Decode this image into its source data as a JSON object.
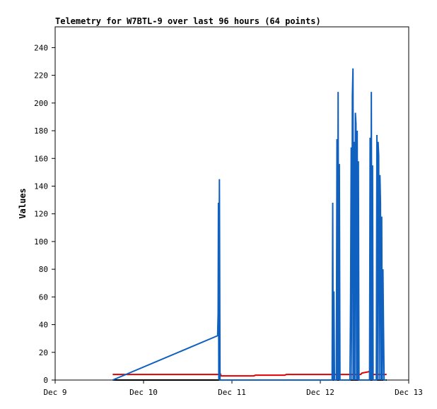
{
  "chart_data": {
    "type": "line",
    "title": "Telemetry for W7BTL-9 over last 96 hours (64 points)",
    "xlabel": "",
    "ylabel": "Values",
    "x_ticks": [
      "Dec 9",
      "Dec 10",
      "Dec 11",
      "Dec 12",
      "Dec 13"
    ],
    "xlim": [
      "Dec 9 00:00",
      "Dec 13 00:00"
    ],
    "ylim": [
      0,
      255
    ],
    "y_ticks": [
      0,
      20,
      40,
      60,
      80,
      100,
      120,
      140,
      160,
      180,
      200,
      220,
      240
    ],
    "grid": false,
    "legend": "none",
    "series": [
      {
        "color": "#000000",
        "points": [
          [
            "Dec 9 15:37",
            0
          ],
          [
            "Dec 12 18:00",
            0
          ]
        ]
      },
      {
        "color": "#e00000",
        "points": [
          [
            "Dec 9 15:37",
            4
          ],
          [
            "Dec 10 20:26",
            4
          ],
          [
            "Dec 10 20:46",
            5
          ],
          [
            "Dec 10 21:05",
            3
          ],
          [
            "Dec 11 06:00",
            3
          ],
          [
            "Dec 11 06:20",
            3.5
          ],
          [
            "Dec 11 14:24",
            3.5
          ],
          [
            "Dec 11 14:44",
            4
          ],
          [
            "Dec 12 10:57",
            4
          ],
          [
            "Dec 12 11:17",
            5
          ],
          [
            "Dec 12 13:11",
            6
          ],
          [
            "Dec 12 13:31",
            7
          ],
          [
            "Dec 12 14:05",
            6
          ],
          [
            "Dec 12 14:24",
            4
          ],
          [
            "Dec 12 18:00",
            4
          ]
        ]
      },
      {
        "color": "#1060c0",
        "points": [
          [
            "Dec 9 15:37",
            0
          ],
          [
            "Dec 10 20:07",
            32
          ],
          [
            "Dec 10 20:15",
            48
          ],
          [
            "Dec 10 20:20",
            128
          ],
          [
            "Dec 10 20:26",
            0
          ],
          [
            "Dec 10 20:36",
            145
          ],
          [
            "Dec 10 20:46",
            0
          ],
          [
            "Dec 12 03:12",
            0
          ],
          [
            "Dec 12 03:22",
            128
          ],
          [
            "Dec 12 03:31",
            0
          ],
          [
            "Dec 12 03:41",
            64
          ],
          [
            "Dec 12 03:51",
            0
          ],
          [
            "Dec 12 04:21",
            0
          ],
          [
            "Dec 12 04:31",
            174
          ],
          [
            "Dec 12 04:41",
            0
          ],
          [
            "Dec 12 04:50",
            208
          ],
          [
            "Dec 12 05:00",
            0
          ],
          [
            "Dec 12 05:10",
            156
          ],
          [
            "Dec 12 05:20",
            0
          ],
          [
            "Dec 12 08:03",
            0
          ],
          [
            "Dec 12 08:13",
            60
          ],
          [
            "Dec 12 08:23",
            168
          ],
          [
            "Dec 12 08:33",
            0
          ],
          [
            "Dec 12 08:42",
            205
          ],
          [
            "Dec 12 08:52",
            225
          ],
          [
            "Dec 12 09:02",
            0
          ],
          [
            "Dec 12 09:12",
            172
          ],
          [
            "Dec 12 09:22",
            0
          ],
          [
            "Dec 12 09:31",
            193
          ],
          [
            "Dec 12 09:41",
            185
          ],
          [
            "Dec 12 09:51",
            0
          ],
          [
            "Dec 12 10:01",
            180
          ],
          [
            "Dec 12 10:11",
            0
          ],
          [
            "Dec 12 10:20",
            158
          ],
          [
            "Dec 12 10:30",
            0
          ],
          [
            "Dec 12 13:22",
            0
          ],
          [
            "Dec 12 13:31",
            175
          ],
          [
            "Dec 12 13:41",
            0
          ],
          [
            "Dec 12 13:51",
            208
          ],
          [
            "Dec 12 14:01",
            0
          ],
          [
            "Dec 12 14:11",
            155
          ],
          [
            "Dec 12 14:20",
            0
          ],
          [
            "Dec 12 15:12",
            0
          ],
          [
            "Dec 12 15:22",
            177
          ],
          [
            "Dec 12 15:31",
            0
          ],
          [
            "Dec 12 15:41",
            172
          ],
          [
            "Dec 12 15:51",
            162
          ],
          [
            "Dec 12 16:01",
            0
          ],
          [
            "Dec 12 16:11",
            148
          ],
          [
            "Dec 12 16:20",
            128
          ],
          [
            "Dec 12 16:30",
            0
          ],
          [
            "Dec 12 16:40",
            118
          ],
          [
            "Dec 12 16:50",
            0
          ],
          [
            "Dec 12 17:00",
            80
          ],
          [
            "Dec 12 17:09",
            40
          ],
          [
            "Dec 12 17:19",
            0
          ],
          [
            "Dec 12 17:50",
            0
          ]
        ]
      }
    ]
  }
}
